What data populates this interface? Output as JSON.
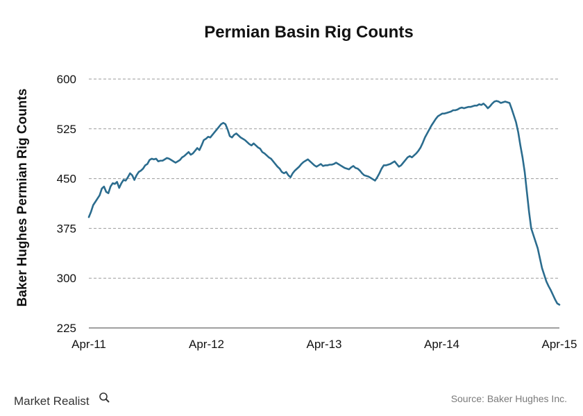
{
  "colors": {
    "line": "#2b6c8e"
  },
  "footer": {
    "brand": "Market Realist",
    "brand_icon": "magnifier-icon",
    "source": "Source: Baker Hughes Inc."
  },
  "chart_data": {
    "type": "line",
    "title": "Permian Basin Rig Counts",
    "xlabel": "",
    "ylabel": "Baker Hughes Permian Rig Counts",
    "ylim": [
      225,
      600
    ],
    "yticks": [
      225,
      300,
      375,
      450,
      525,
      600
    ],
    "xticks": [
      "Apr-11",
      "Apr-12",
      "Apr-13",
      "Apr-14",
      "Apr-15"
    ],
    "grid": "horizontal dashed",
    "series": [
      {
        "values": [
          392,
          400,
          410,
          415,
          420,
          425,
          435,
          438,
          430,
          428,
          438,
          443,
          442,
          445,
          436,
          443,
          448,
          447,
          452,
          458,
          455,
          448,
          455,
          460,
          462,
          465,
          470,
          472,
          478,
          480,
          479,
          480,
          476,
          477,
          477,
          479,
          481,
          480,
          478,
          476,
          474,
          476,
          478,
          482,
          484,
          487,
          490,
          486,
          488,
          492,
          496,
          493,
          500,
          508,
          510,
          513,
          512,
          516,
          520,
          524,
          528,
          532,
          534,
          532,
          524,
          514,
          512,
          516,
          518,
          515,
          512,
          510,
          508,
          505,
          502,
          500,
          503,
          500,
          497,
          495,
          490,
          488,
          485,
          482,
          480,
          476,
          472,
          468,
          465,
          460,
          458,
          460,
          455,
          452,
          458,
          462,
          465,
          468,
          472,
          475,
          477,
          479,
          476,
          473,
          470,
          468,
          470,
          472,
          469,
          470,
          470,
          471,
          471,
          472,
          474,
          472,
          470,
          468,
          466,
          465,
          464,
          467,
          469,
          466,
          465,
          462,
          458,
          455,
          454,
          453,
          451,
          449,
          447,
          452,
          458,
          465,
          470,
          470,
          471,
          472,
          474,
          476,
          472,
          468,
          470,
          474,
          478,
          482,
          484,
          482,
          485,
          488,
          492,
          497,
          504,
          512,
          518,
          524,
          530,
          535,
          540,
          544,
          546,
          548,
          548,
          549,
          550,
          551,
          553,
          553,
          554,
          556,
          557,
          556,
          557,
          558,
          558,
          559,
          560,
          560,
          562,
          561,
          563,
          560,
          556,
          559,
          563,
          566,
          567,
          566,
          564,
          565,
          566,
          565,
          564,
          555,
          545,
          535,
          520,
          500,
          482,
          460,
          430,
          400,
          375,
          365,
          355,
          345,
          330,
          315,
          305,
          295,
          288,
          282,
          275,
          268,
          262,
          260
        ]
      }
    ]
  }
}
